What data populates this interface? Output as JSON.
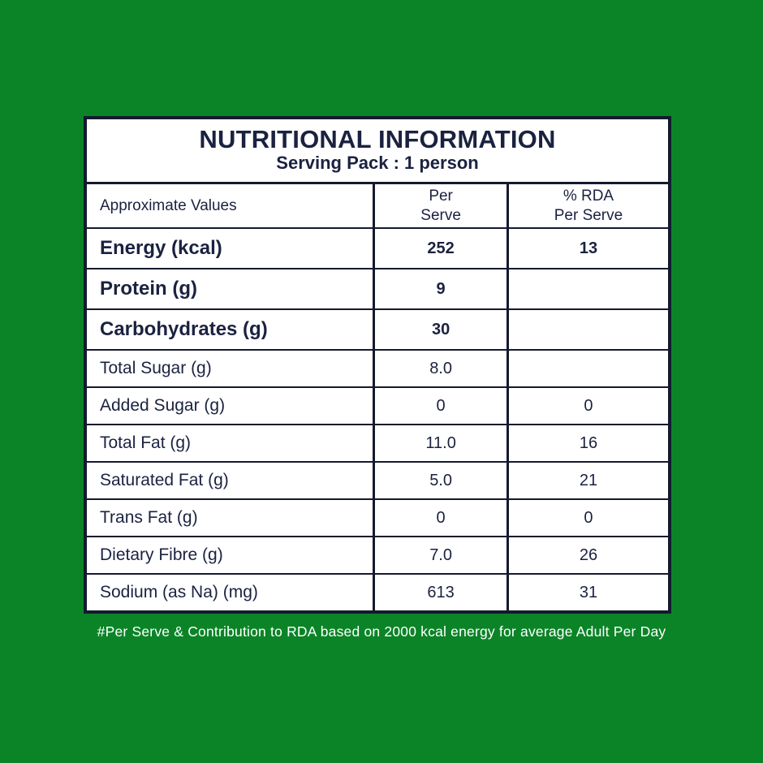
{
  "page": {
    "background_color": "#0B8427",
    "table_background": "#FFFFFF",
    "border_color": "#141A2E",
    "text_color": "#1B2240",
    "footnote_color": "#FFFFFF"
  },
  "table": {
    "title": "NUTRITIONAL INFORMATION",
    "subtitle": "Serving Pack : 1 person",
    "columns": [
      "Approximate Values",
      "Per\nServe",
      "% RDA\nPer Serve"
    ],
    "rows": [
      {
        "label": "Energy (kcal)",
        "per_serve": "252",
        "rda_per_serve": "13",
        "emphasis": true
      },
      {
        "label": "Protein (g)",
        "per_serve": "9",
        "rda_per_serve": "",
        "emphasis": true
      },
      {
        "label": "Carbohydrates (g)",
        "per_serve": "30",
        "rda_per_serve": "",
        "emphasis": true
      },
      {
        "label": "Total Sugar (g)",
        "per_serve": "8.0",
        "rda_per_serve": "",
        "emphasis": false
      },
      {
        "label": "Added Sugar (g)",
        "per_serve": "0",
        "rda_per_serve": "0",
        "emphasis": false
      },
      {
        "label": "Total Fat (g)",
        "per_serve": "11.0",
        "rda_per_serve": "16",
        "emphasis": false
      },
      {
        "label": "Saturated Fat (g)",
        "per_serve": "5.0",
        "rda_per_serve": "21",
        "emphasis": false
      },
      {
        "label": "Trans Fat (g)",
        "per_serve": "0",
        "rda_per_serve": "0",
        "emphasis": false
      },
      {
        "label": "Dietary Fibre (g)",
        "per_serve": "7.0",
        "rda_per_serve": "26",
        "emphasis": false
      },
      {
        "label": "Sodium (as Na) (mg)",
        "per_serve": "613",
        "rda_per_serve": "31",
        "emphasis": false
      }
    ]
  },
  "footnote": "#Per Serve & Contribution to RDA based on 2000 kcal energy for average Adult Per Day"
}
